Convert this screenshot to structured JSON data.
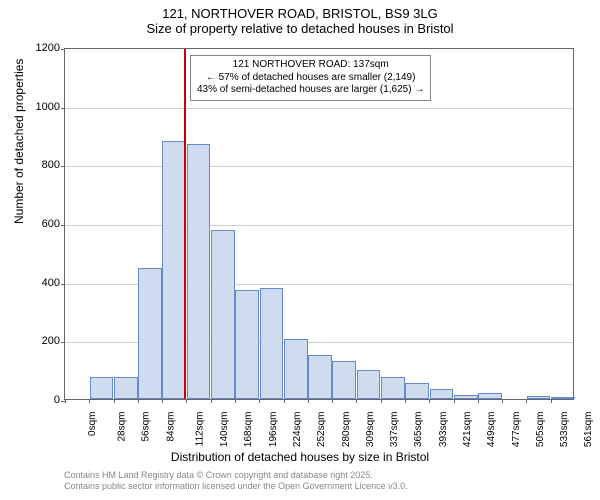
{
  "chart": {
    "type": "histogram",
    "title_line1": "121, NORTHOVER ROAD, BRISTOL, BS9 3LG",
    "title_line2": "Size of property relative to detached houses in Bristol",
    "title_fontsize": 13,
    "x_axis_label": "Distribution of detached houses by size in Bristol",
    "y_axis_label": "Number of detached properties",
    "axis_label_fontsize": 12,
    "tick_fontsize": 11,
    "background_color": "#ffffff",
    "plot_border_color": "#666666",
    "grid_color": "#d0d0d0",
    "bar_fill_color": "#cfdcf0",
    "bar_border_color": "#6688cc",
    "reference_line_color": "#cc0000",
    "annotation_border_color": "#888888",
    "annotation_bg_color": "#ffffff",
    "ylim": [
      0,
      1200
    ],
    "y_ticks": [
      0,
      200,
      400,
      600,
      800,
      1000,
      1200
    ],
    "x_categories": [
      "0sqm",
      "28sqm",
      "56sqm",
      "84sqm",
      "112sqm",
      "140sqm",
      "168sqm",
      "196sqm",
      "224sqm",
      "252sqm",
      "280sqm",
      "309sqm",
      "337sqm",
      "365sqm",
      "393sqm",
      "421sqm",
      "449sqm",
      "477sqm",
      "505sqm",
      "533sqm",
      "561sqm"
    ],
    "bar_values": [
      0,
      75,
      75,
      445,
      880,
      870,
      575,
      370,
      380,
      205,
      150,
      130,
      100,
      75,
      55,
      35,
      15,
      20,
      0,
      10,
      5
    ],
    "reference_x_index": 5,
    "reference_offset": -0.1,
    "annotation": {
      "line1": "121 NORTHOVER ROAD: 137sqm",
      "line2": "← 57% of detached houses are smaller (2,149)",
      "line3": "43% of semi-detached houses are larger (1,625) →",
      "fontsize": 10
    },
    "footer_line1": "Contains HM Land Registry data © Crown copyright and database right 2025.",
    "footer_line2": "Contains public sector information licensed under the Open Government Licence v3.0.",
    "footer_color": "#888888",
    "footer_fontsize": 9
  }
}
